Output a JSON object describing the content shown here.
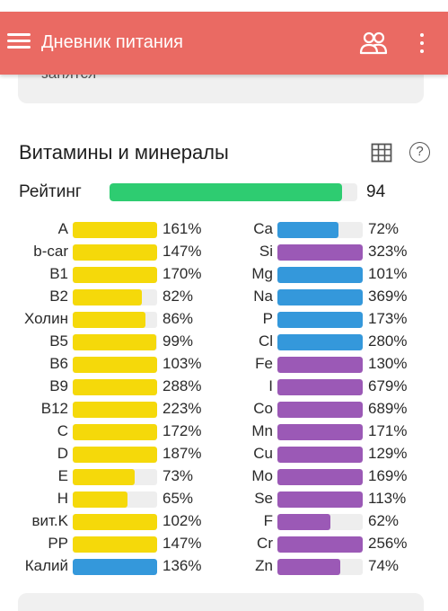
{
  "header": {
    "title": "Дневник питания",
    "background": "#ea6a63",
    "icons": [
      "menu-icon",
      "users-icon",
      "more-vert-icon"
    ]
  },
  "previous_card": {
    "text": "занятся"
  },
  "section": {
    "title": "Витамины и минералы",
    "icons": [
      "table-icon",
      "help-icon"
    ],
    "help_glyph": "?"
  },
  "rating": {
    "label": "Рейтинг",
    "value": "94",
    "fill_fraction": 0.94,
    "color": "#2ecc71"
  },
  "colors": {
    "vitamin": "#f5d90a",
    "electrolyte": "#3498db",
    "mineral": "#9b59b6",
    "track": "#eeeeee"
  },
  "left_column": [
    {
      "name": "A",
      "percent": "161%",
      "fill": 1.0,
      "kind": "vitamin"
    },
    {
      "name": "b-car",
      "percent": "147%",
      "fill": 1.0,
      "kind": "vitamin"
    },
    {
      "name": "B1",
      "percent": "170%",
      "fill": 1.0,
      "kind": "vitamin"
    },
    {
      "name": "B2",
      "percent": "82%",
      "fill": 0.82,
      "kind": "vitamin"
    },
    {
      "name": "Холин",
      "percent": "86%",
      "fill": 0.86,
      "kind": "vitamin"
    },
    {
      "name": "B5",
      "percent": "99%",
      "fill": 0.99,
      "kind": "vitamin"
    },
    {
      "name": "B6",
      "percent": "103%",
      "fill": 1.0,
      "kind": "vitamin"
    },
    {
      "name": "B9",
      "percent": "288%",
      "fill": 1.0,
      "kind": "vitamin"
    },
    {
      "name": "B12",
      "percent": "223%",
      "fill": 1.0,
      "kind": "vitamin"
    },
    {
      "name": "C",
      "percent": "172%",
      "fill": 1.0,
      "kind": "vitamin"
    },
    {
      "name": "D",
      "percent": "187%",
      "fill": 1.0,
      "kind": "vitamin"
    },
    {
      "name": "E",
      "percent": "73%",
      "fill": 0.73,
      "kind": "vitamin"
    },
    {
      "name": "H",
      "percent": "65%",
      "fill": 0.65,
      "kind": "vitamin"
    },
    {
      "name": "вит.K",
      "percent": "102%",
      "fill": 1.0,
      "kind": "vitamin"
    },
    {
      "name": "PP",
      "percent": "147%",
      "fill": 1.0,
      "kind": "vitamin"
    },
    {
      "name": "Калий",
      "percent": "136%",
      "fill": 1.0,
      "kind": "electrolyte"
    }
  ],
  "right_column": [
    {
      "name": "Ca",
      "percent": "72%",
      "fill": 0.72,
      "kind": "electrolyte"
    },
    {
      "name": "Si",
      "percent": "323%",
      "fill": 1.0,
      "kind": "mineral"
    },
    {
      "name": "Mg",
      "percent": "101%",
      "fill": 1.0,
      "kind": "electrolyte"
    },
    {
      "name": "Na",
      "percent": "369%",
      "fill": 1.0,
      "kind": "electrolyte"
    },
    {
      "name": "P",
      "percent": "173%",
      "fill": 1.0,
      "kind": "electrolyte"
    },
    {
      "name": "Cl",
      "percent": "280%",
      "fill": 1.0,
      "kind": "electrolyte"
    },
    {
      "name": "Fe",
      "percent": "130%",
      "fill": 1.0,
      "kind": "mineral"
    },
    {
      "name": "I",
      "percent": "679%",
      "fill": 1.0,
      "kind": "mineral"
    },
    {
      "name": "Co",
      "percent": "689%",
      "fill": 1.0,
      "kind": "mineral"
    },
    {
      "name": "Mn",
      "percent": "171%",
      "fill": 1.0,
      "kind": "mineral"
    },
    {
      "name": "Cu",
      "percent": "129%",
      "fill": 1.0,
      "kind": "mineral"
    },
    {
      "name": "Mo",
      "percent": "169%",
      "fill": 1.0,
      "kind": "mineral"
    },
    {
      "name": "Se",
      "percent": "113%",
      "fill": 1.0,
      "kind": "mineral"
    },
    {
      "name": "F",
      "percent": "62%",
      "fill": 0.62,
      "kind": "mineral"
    },
    {
      "name": "Cr",
      "percent": "256%",
      "fill": 1.0,
      "kind": "mineral"
    },
    {
      "name": "Zn",
      "percent": "74%",
      "fill": 0.74,
      "kind": "mineral"
    }
  ]
}
